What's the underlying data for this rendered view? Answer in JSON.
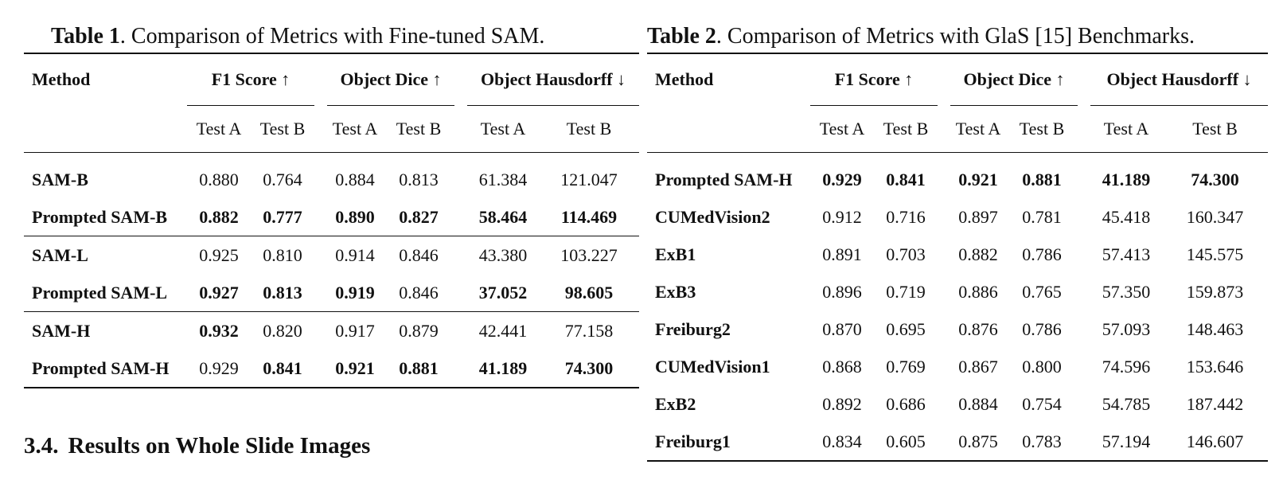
{
  "table1": {
    "caption_label": "Table 1",
    "caption_text": ". Comparison of Metrics with Fine-tuned SAM.",
    "header": {
      "method": "Method",
      "groups": [
        "F1 Score ↑",
        "Object Dice ↑",
        "Object Hausdorff ↓"
      ],
      "sub": [
        "Test A",
        "Test B",
        "Test A",
        "Test B",
        "Test A",
        "Test B"
      ]
    },
    "rows": [
      {
        "name": "SAM-B",
        "values": [
          "0.880",
          "0.764",
          "0.884",
          "0.813",
          "61.384",
          "121.047"
        ],
        "bold": [
          false,
          false,
          false,
          false,
          false,
          false
        ]
      },
      {
        "name": "Prompted SAM-B",
        "values": [
          "0.882",
          "0.777",
          "0.890",
          "0.827",
          "58.464",
          "114.469"
        ],
        "bold": [
          true,
          true,
          true,
          true,
          true,
          true
        ]
      },
      {
        "name": "SAM-L",
        "values": [
          "0.925",
          "0.810",
          "0.914",
          "0.846",
          "43.380",
          "103.227"
        ],
        "bold": [
          false,
          false,
          false,
          false,
          false,
          false
        ]
      },
      {
        "name": "Prompted SAM-L",
        "values": [
          "0.927",
          "0.813",
          "0.919",
          "0.846",
          "37.052",
          "98.605"
        ],
        "bold": [
          true,
          true,
          true,
          false,
          true,
          true
        ]
      },
      {
        "name": "SAM-H",
        "values": [
          "0.932",
          "0.820",
          "0.917",
          "0.879",
          "42.441",
          "77.158"
        ],
        "bold": [
          true,
          false,
          false,
          false,
          false,
          false
        ]
      },
      {
        "name": "Prompted SAM-H",
        "values": [
          "0.929",
          "0.841",
          "0.921",
          "0.881",
          "41.189",
          "74.300"
        ],
        "bold": [
          false,
          true,
          true,
          true,
          true,
          true
        ]
      }
    ]
  },
  "table2": {
    "caption_label": "Table 2",
    "caption_text": ". Comparison of Metrics with GlaS [15] Benchmarks.",
    "header": {
      "method": "Method",
      "groups": [
        "F1 Score ↑",
        "Object Dice ↑",
        "Object Hausdorff ↓"
      ],
      "sub": [
        "Test A",
        "Test B",
        "Test A",
        "Test B",
        "Test A",
        "Test B"
      ]
    },
    "rows": [
      {
        "name": "Prompted SAM-H",
        "values": [
          "0.929",
          "0.841",
          "0.921",
          "0.881",
          "41.189",
          "74.300"
        ],
        "bold": [
          true,
          true,
          true,
          true,
          true,
          true
        ]
      },
      {
        "name": "CUMedVision2",
        "values": [
          "0.912",
          "0.716",
          "0.897",
          "0.781",
          "45.418",
          "160.347"
        ],
        "bold": [
          false,
          false,
          false,
          false,
          false,
          false
        ]
      },
      {
        "name": "ExB1",
        "values": [
          "0.891",
          "0.703",
          "0.882",
          "0.786",
          "57.413",
          "145.575"
        ],
        "bold": [
          false,
          false,
          false,
          false,
          false,
          false
        ]
      },
      {
        "name": "ExB3",
        "values": [
          "0.896",
          "0.719",
          "0.886",
          "0.765",
          "57.350",
          "159.873"
        ],
        "bold": [
          false,
          false,
          false,
          false,
          false,
          false
        ]
      },
      {
        "name": "Freiburg2",
        "values": [
          "0.870",
          "0.695",
          "0.876",
          "0.786",
          "57.093",
          "148.463"
        ],
        "bold": [
          false,
          false,
          false,
          false,
          false,
          false
        ]
      },
      {
        "name": "CUMedVision1",
        "values": [
          "0.868",
          "0.769",
          "0.867",
          "0.800",
          "74.596",
          "153.646"
        ],
        "bold": [
          false,
          false,
          false,
          false,
          false,
          false
        ]
      },
      {
        "name": "ExB2",
        "values": [
          "0.892",
          "0.686",
          "0.884",
          "0.754",
          "54.785",
          "187.442"
        ],
        "bold": [
          false,
          false,
          false,
          false,
          false,
          false
        ]
      },
      {
        "name": "Freiburg1",
        "values": [
          "0.834",
          "0.605",
          "0.875",
          "0.783",
          "57.194",
          "146.607"
        ],
        "bold": [
          false,
          false,
          false,
          false,
          false,
          false
        ]
      }
    ]
  },
  "section": {
    "number": "3.4.",
    "title": "Results on Whole Slide Images"
  }
}
